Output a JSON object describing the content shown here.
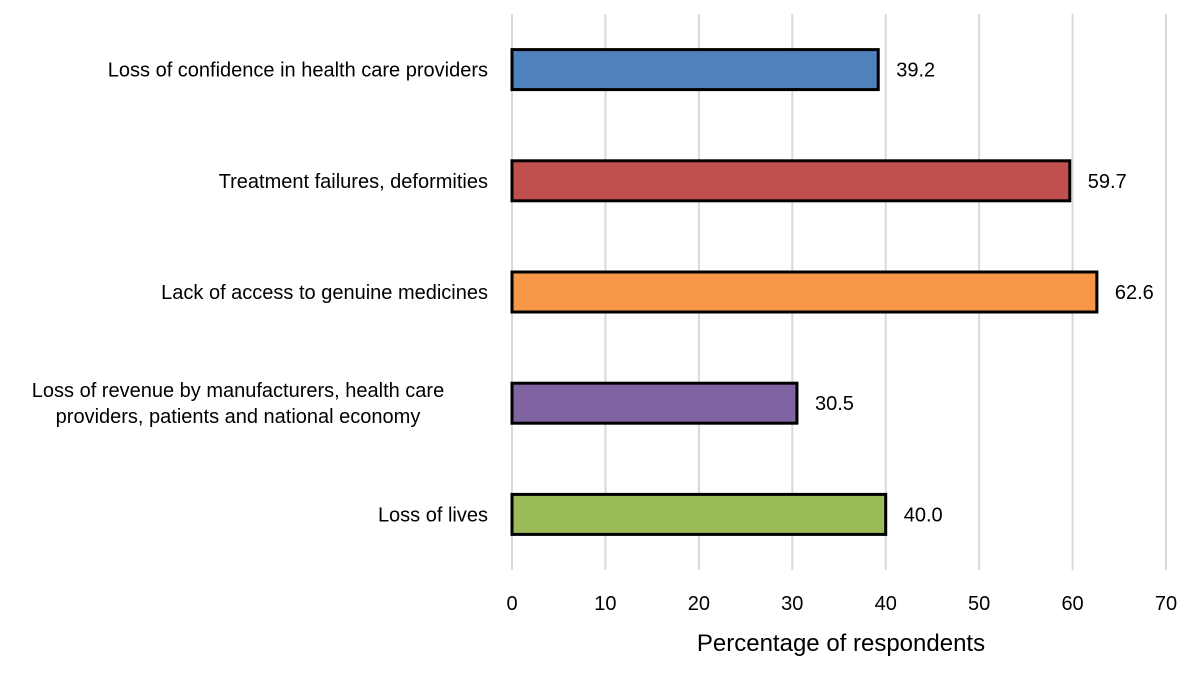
{
  "chart_data": {
    "type": "bar",
    "orientation": "horizontal",
    "categories": [
      [
        "Loss of confidence in health care providers"
      ],
      [
        "Treatment failures, deformities"
      ],
      [
        "Lack of access to genuine medicines"
      ],
      [
        "Loss of revenue by manufacturers, health care",
        "providers, patients and national economy"
      ],
      [
        "Loss of lives"
      ]
    ],
    "values": [
      39.2,
      59.7,
      62.6,
      30.5,
      40.0
    ],
    "data_labels": [
      "39.2",
      "59.7",
      "62.6",
      "30.5",
      "40.0"
    ],
    "bar_colors": [
      "#4F81BD",
      "#C0504D",
      "#F79646",
      "#8064A2",
      "#9BBB59"
    ],
    "bar_outline": "#000000",
    "xlabel": "Percentage of respondents",
    "ylabel": "",
    "xlim": [
      0,
      70
    ],
    "xticks": [
      "0",
      "10",
      "20",
      "30",
      "40",
      "50",
      "60",
      "70"
    ],
    "grid": "vertical",
    "grid_color": "#D9D9D9",
    "legend": "none"
  }
}
